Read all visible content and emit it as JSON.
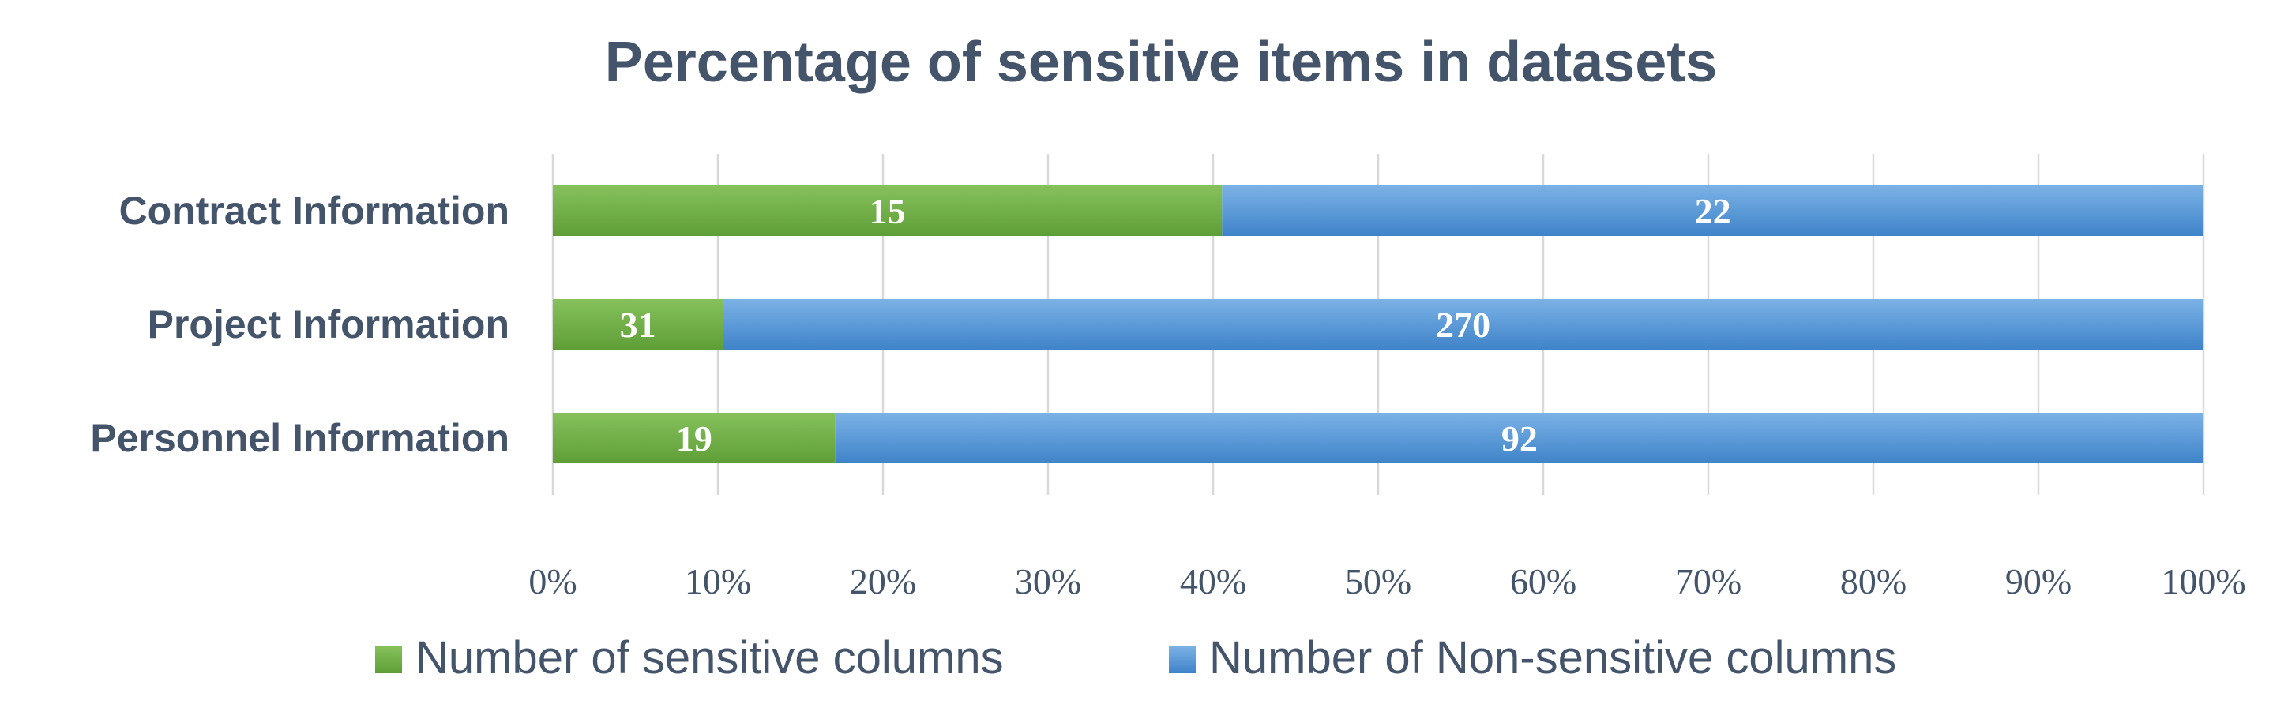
{
  "chart_data": {
    "type": "bar",
    "orientation": "horizontal",
    "stacking": "percent",
    "title": "Percentage of sensitive items in datasets",
    "categories": [
      "Contract Information",
      "Project Information",
      "Personnel Information"
    ],
    "series": [
      {
        "name": "Number of sensitive columns",
        "values": [
          15,
          31,
          19
        ],
        "color": "#70AD47"
      },
      {
        "name": "Number of Non-sensitive columns",
        "values": [
          22,
          270,
          92
        ],
        "color": "#5B9BD5"
      }
    ],
    "x_ticks": [
      "0%",
      "10%",
      "20%",
      "30%",
      "40%",
      "50%",
      "60%",
      "70%",
      "80%",
      "90%",
      "100%"
    ],
    "xlim": [
      0,
      100
    ],
    "grid": "vertical",
    "legend": "bottom",
    "data_labels": true
  }
}
